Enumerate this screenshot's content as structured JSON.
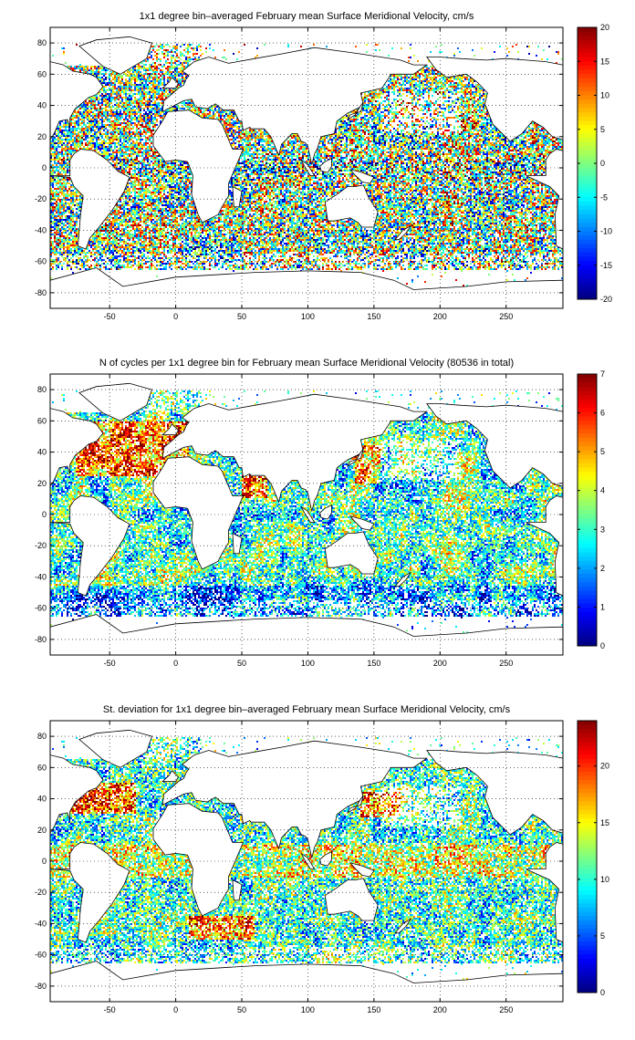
{
  "chart_data": [
    {
      "type": "heatmap",
      "title": "1x1 degree bin–averaged February mean Surface Meridional Velocity, cm/s",
      "xlim": [
        -95,
        293
      ],
      "ylim": [
        -90,
        90
      ],
      "x_ticks": [
        -50,
        0,
        50,
        100,
        150,
        200,
        250
      ],
      "y_ticks": [
        80,
        60,
        40,
        20,
        0,
        -20,
        -40,
        -60,
        -80
      ],
      "grid": "dotted",
      "colorbar": {
        "min": -20,
        "max": 20,
        "ticks": [
          20,
          15,
          10,
          5,
          0,
          -5,
          -10,
          -15,
          -20
        ],
        "colormap": "jet"
      },
      "field": "mean"
    },
    {
      "type": "heatmap",
      "title": "N of cycles per 1x1 degree bin for February mean Surface Meridional Velocity (80536 in total)",
      "xlim": [
        -95,
        293
      ],
      "ylim": [
        -90,
        90
      ],
      "x_ticks": [
        -50,
        0,
        50,
        100,
        150,
        200,
        250
      ],
      "y_ticks": [
        80,
        60,
        40,
        20,
        0,
        -20,
        -40,
        -60,
        -80
      ],
      "grid": "dotted",
      "colorbar": {
        "min": 0,
        "max": 7,
        "ticks": [
          7,
          6,
          5,
          4,
          3,
          2,
          1,
          0
        ],
        "colormap": "jet"
      },
      "field": "count"
    },
    {
      "type": "heatmap",
      "title": "St. deviation for 1x1 degree bin–averaged February mean Surface Meridional Velocity, cm/s",
      "xlim": [
        -95,
        293
      ],
      "ylim": [
        -90,
        90
      ],
      "x_ticks": [
        -50,
        0,
        50,
        100,
        150,
        200,
        250
      ],
      "y_ticks": [
        80,
        60,
        40,
        20,
        0,
        -20,
        -40,
        -60,
        -80
      ],
      "grid": "dotted",
      "colorbar": {
        "min": 0,
        "max": 24,
        "ticks": [
          20,
          15,
          10,
          5,
          0
        ],
        "colormap": "jet"
      },
      "field": "std"
    }
  ]
}
